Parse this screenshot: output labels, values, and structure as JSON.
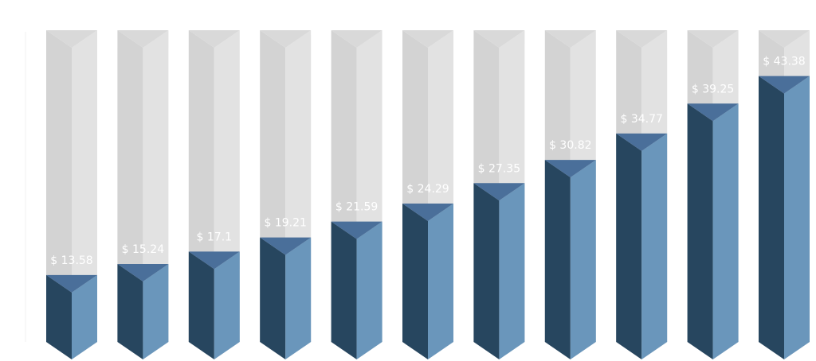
{
  "chart_data": {
    "type": "bar",
    "categories": [
      null,
      null,
      null,
      null,
      null,
      null,
      null,
      null,
      null,
      null,
      null
    ],
    "values": [
      13.58,
      15.24,
      17.1,
      19.21,
      21.59,
      24.29,
      27.35,
      30.82,
      34.77,
      39.25,
      43.38
    ],
    "value_labels": [
      "$ 13.58",
      "$ 15.24",
      "$ 17.1",
      "$ 19.21",
      "$ 21.59",
      "$ 24.29",
      "$ 27.35",
      "$ 30.82",
      "$ 34.77",
      "$ 39.25",
      "$ 43.38"
    ],
    "colors": {
      "front_left": "#27465f",
      "front_right": "#6a96bb",
      "top": "#4a6f9a",
      "back_left": "#d3d3d3",
      "back_right": "#e2e2e2",
      "back_top": "#d9d9d9"
    },
    "ylim": [
      0,
      50
    ]
  }
}
